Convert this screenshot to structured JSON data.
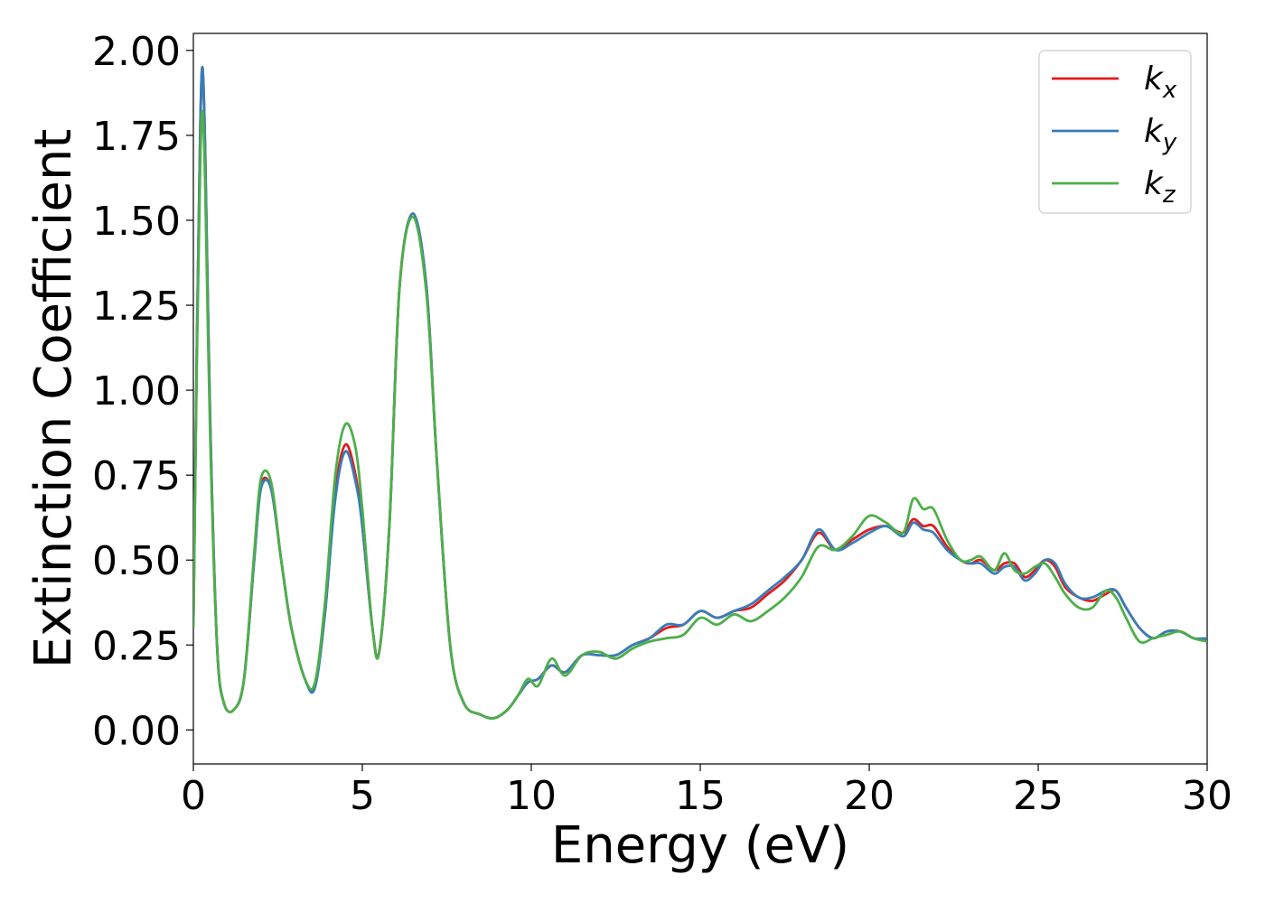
{
  "chart_data": {
    "type": "line",
    "xlabel": "Energy (eV)",
    "ylabel": "Extinction Coefficient",
    "xlim": [
      0,
      30
    ],
    "ylim": [
      -0.1,
      2.05
    ],
    "xticks": [
      0,
      5,
      10,
      15,
      20,
      25,
      30
    ],
    "yticks": [
      0.0,
      0.25,
      0.5,
      0.75,
      1.0,
      1.25,
      1.5,
      1.75,
      2.0
    ],
    "xtick_labels": [
      "0",
      "5",
      "10",
      "15",
      "20",
      "25",
      "30"
    ],
    "ytick_labels": [
      "0.00",
      "0.25",
      "0.50",
      "0.75",
      "1.00",
      "1.25",
      "1.50",
      "1.75",
      "2.00"
    ],
    "grid": false,
    "legend_position": "top-right",
    "series": [
      {
        "name": "kx",
        "label_base": "k",
        "label_sub": "x",
        "color": "#e41a1c",
        "x": [
          0,
          0.1,
          0.2,
          0.27,
          0.35,
          0.5,
          0.7,
          0.9,
          1.2,
          1.5,
          1.8,
          2.0,
          2.3,
          2.6,
          2.9,
          3.3,
          3.6,
          3.9,
          4.2,
          4.5,
          4.8,
          5.0,
          5.3,
          5.5,
          5.8,
          6.1,
          6.5,
          6.9,
          7.2,
          7.6,
          8.0,
          8.5,
          8.9,
          9.3,
          9.6,
          9.9,
          10.2,
          10.6,
          11.0,
          11.5,
          12.0,
          12.5,
          13.0,
          13.5,
          14.0,
          14.5,
          15.0,
          15.5,
          16.0,
          16.5,
          17.0,
          17.5,
          18.0,
          18.5,
          19.0,
          19.5,
          20.0,
          20.5,
          21.0,
          21.3,
          21.6,
          21.9,
          22.3,
          22.7,
          23.0,
          23.3,
          23.7,
          24.0,
          24.3,
          24.6,
          24.9,
          25.2,
          25.5,
          25.8,
          26.2,
          26.6,
          27.0,
          27.3,
          27.6,
          28.0,
          28.4,
          28.8,
          29.2,
          29.6,
          30.0
        ],
        "y": [
          0.3,
          1.1,
          1.75,
          1.95,
          1.7,
          0.9,
          0.25,
          0.08,
          0.06,
          0.15,
          0.5,
          0.72,
          0.71,
          0.5,
          0.3,
          0.15,
          0.13,
          0.35,
          0.7,
          0.84,
          0.75,
          0.6,
          0.3,
          0.23,
          0.6,
          1.3,
          1.52,
          1.3,
          0.8,
          0.25,
          0.08,
          0.045,
          0.035,
          0.06,
          0.1,
          0.14,
          0.15,
          0.19,
          0.17,
          0.22,
          0.22,
          0.22,
          0.25,
          0.27,
          0.3,
          0.31,
          0.35,
          0.33,
          0.35,
          0.36,
          0.4,
          0.44,
          0.5,
          0.58,
          0.53,
          0.56,
          0.59,
          0.6,
          0.58,
          0.62,
          0.6,
          0.6,
          0.54,
          0.5,
          0.49,
          0.5,
          0.47,
          0.49,
          0.49,
          0.45,
          0.47,
          0.5,
          0.48,
          0.42,
          0.39,
          0.38,
          0.4,
          0.41,
          0.36,
          0.3,
          0.27,
          0.29,
          0.29,
          0.27,
          0.265
        ]
      },
      {
        "name": "ky",
        "label_base": "k",
        "label_sub": "y",
        "color": "#377eb8",
        "x": [
          0,
          0.1,
          0.2,
          0.27,
          0.35,
          0.5,
          0.7,
          0.9,
          1.2,
          1.5,
          1.8,
          2.0,
          2.3,
          2.6,
          2.9,
          3.3,
          3.6,
          3.9,
          4.2,
          4.5,
          4.8,
          5.0,
          5.3,
          5.5,
          5.8,
          6.1,
          6.5,
          6.9,
          7.2,
          7.6,
          8.0,
          8.5,
          8.9,
          9.3,
          9.6,
          9.9,
          10.2,
          10.6,
          11.0,
          11.5,
          12.0,
          12.5,
          13.0,
          13.5,
          14.0,
          14.5,
          15.0,
          15.5,
          16.0,
          16.5,
          17.0,
          17.5,
          18.0,
          18.5,
          19.0,
          19.5,
          20.0,
          20.5,
          21.0,
          21.3,
          21.6,
          21.9,
          22.3,
          22.7,
          23.0,
          23.3,
          23.7,
          24.0,
          24.3,
          24.6,
          24.9,
          25.2,
          25.5,
          25.8,
          26.2,
          26.6,
          27.0,
          27.3,
          27.6,
          28.0,
          28.4,
          28.8,
          29.2,
          29.6,
          30.0
        ],
        "y": [
          0.3,
          1.1,
          1.75,
          1.95,
          1.7,
          0.9,
          0.25,
          0.08,
          0.06,
          0.15,
          0.5,
          0.71,
          0.71,
          0.5,
          0.3,
          0.15,
          0.125,
          0.35,
          0.68,
          0.82,
          0.73,
          0.6,
          0.3,
          0.23,
          0.6,
          1.3,
          1.52,
          1.3,
          0.8,
          0.25,
          0.08,
          0.045,
          0.035,
          0.06,
          0.1,
          0.14,
          0.15,
          0.19,
          0.17,
          0.22,
          0.22,
          0.22,
          0.25,
          0.27,
          0.31,
          0.31,
          0.35,
          0.33,
          0.35,
          0.37,
          0.41,
          0.45,
          0.5,
          0.59,
          0.53,
          0.55,
          0.58,
          0.6,
          0.57,
          0.61,
          0.59,
          0.58,
          0.53,
          0.5,
          0.49,
          0.49,
          0.46,
          0.48,
          0.48,
          0.44,
          0.46,
          0.5,
          0.49,
          0.43,
          0.39,
          0.39,
          0.41,
          0.41,
          0.36,
          0.3,
          0.27,
          0.29,
          0.29,
          0.27,
          0.27
        ]
      },
      {
        "name": "kz",
        "label_base": "k",
        "label_sub": "z",
        "color": "#4daf4a",
        "x": [
          0,
          0.1,
          0.2,
          0.27,
          0.35,
          0.5,
          0.7,
          0.9,
          1.2,
          1.5,
          1.8,
          2.0,
          2.3,
          2.6,
          2.9,
          3.3,
          3.6,
          3.9,
          4.2,
          4.5,
          4.8,
          5.0,
          5.3,
          5.5,
          5.8,
          6.1,
          6.5,
          6.9,
          7.2,
          7.6,
          8.0,
          8.5,
          8.9,
          9.3,
          9.6,
          9.9,
          10.2,
          10.6,
          11.0,
          11.5,
          12.0,
          12.5,
          13.0,
          13.5,
          14.0,
          14.5,
          15.0,
          15.5,
          16.0,
          16.5,
          17.0,
          17.5,
          18.0,
          18.5,
          19.0,
          19.5,
          20.0,
          20.5,
          21.0,
          21.3,
          21.6,
          21.9,
          22.3,
          22.7,
          23.0,
          23.3,
          23.7,
          24.0,
          24.3,
          24.6,
          24.9,
          25.2,
          25.5,
          25.8,
          26.2,
          26.6,
          27.0,
          27.3,
          27.6,
          28.0,
          28.4,
          28.8,
          29.2,
          29.6,
          30.0
        ],
        "y": [
          0.3,
          1.05,
          1.65,
          1.82,
          1.6,
          0.85,
          0.25,
          0.08,
          0.06,
          0.15,
          0.52,
          0.74,
          0.73,
          0.5,
          0.3,
          0.15,
          0.14,
          0.38,
          0.75,
          0.9,
          0.83,
          0.65,
          0.3,
          0.23,
          0.6,
          1.3,
          1.51,
          1.28,
          0.8,
          0.25,
          0.08,
          0.045,
          0.035,
          0.06,
          0.1,
          0.15,
          0.13,
          0.21,
          0.16,
          0.22,
          0.23,
          0.21,
          0.24,
          0.26,
          0.27,
          0.28,
          0.33,
          0.31,
          0.34,
          0.32,
          0.35,
          0.39,
          0.45,
          0.54,
          0.53,
          0.57,
          0.63,
          0.61,
          0.58,
          0.68,
          0.65,
          0.65,
          0.56,
          0.5,
          0.5,
          0.51,
          0.47,
          0.52,
          0.47,
          0.46,
          0.48,
          0.49,
          0.45,
          0.4,
          0.36,
          0.36,
          0.41,
          0.39,
          0.33,
          0.26,
          0.27,
          0.28,
          0.29,
          0.27,
          0.26
        ]
      }
    ]
  }
}
